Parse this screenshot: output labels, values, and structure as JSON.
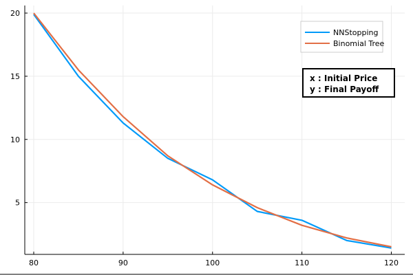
{
  "chart_data": {
    "type": "line",
    "title": "",
    "xlabel": "",
    "ylabel": "",
    "x": [
      80,
      85,
      90,
      95,
      100,
      105,
      110,
      115,
      120
    ],
    "xlim": [
      79,
      121.5
    ],
    "ylim": [
      0.9,
      20.6
    ],
    "xticks": [
      80,
      90,
      100,
      110,
      120
    ],
    "yticks": [
      5,
      10,
      15,
      20
    ],
    "grid": true,
    "legend_position": "top-right",
    "series": [
      {
        "name": "NNStopping",
        "color": "#009af9",
        "values": [
          19.9,
          15.0,
          11.3,
          8.5,
          6.8,
          4.3,
          3.6,
          2.0,
          1.4
        ]
      },
      {
        "name": "Binomial Tree",
        "color": "#e26f46",
        "values": [
          20.0,
          15.5,
          11.8,
          8.7,
          6.4,
          4.6,
          3.2,
          2.2,
          1.5
        ]
      }
    ],
    "annotation": {
      "line1": "x : Initial Price",
      "line2": "y : Final Payoff"
    }
  }
}
